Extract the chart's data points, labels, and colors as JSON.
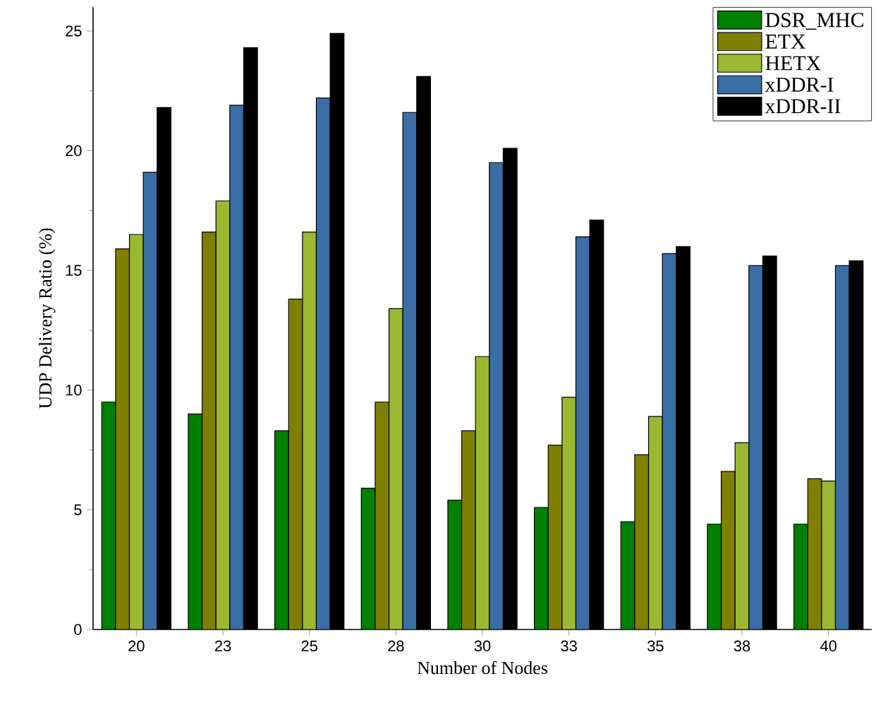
{
  "chart_data": {
    "type": "bar",
    "xlabel": "Number of Nodes",
    "ylabel": "UDP Delivery Ratio (%)",
    "categories": [
      "20",
      "23",
      "25",
      "28",
      "30",
      "33",
      "35",
      "38",
      "40"
    ],
    "series": [
      {
        "name": "DSR_MHC",
        "color": "#008000",
        "values": [
          9.5,
          9.0,
          8.3,
          5.9,
          5.4,
          5.1,
          4.5,
          4.4,
          4.4
        ]
      },
      {
        "name": "ETX",
        "color": "#808000",
        "values": [
          15.9,
          16.6,
          13.8,
          9.5,
          8.3,
          7.7,
          7.3,
          6.6,
          6.3
        ]
      },
      {
        "name": "HETX",
        "color": "#9ab832",
        "values": [
          16.5,
          17.9,
          16.6,
          13.4,
          11.4,
          9.7,
          8.9,
          7.8,
          6.2
        ]
      },
      {
        "name": "xDDR-I",
        "color": "#3a6ea5",
        "values": [
          19.1,
          21.9,
          22.2,
          21.6,
          19.5,
          16.4,
          15.7,
          15.2,
          15.2
        ]
      },
      {
        "name": "xDDR-II",
        "color": "#000000",
        "values": [
          21.8,
          24.3,
          24.9,
          23.1,
          20.1,
          17.1,
          16.0,
          15.6,
          15.4
        ]
      }
    ],
    "ylim": [
      0,
      26
    ],
    "yticks": [
      0,
      5,
      10,
      15,
      20,
      25
    ],
    "grid": false,
    "legend": "top right"
  }
}
